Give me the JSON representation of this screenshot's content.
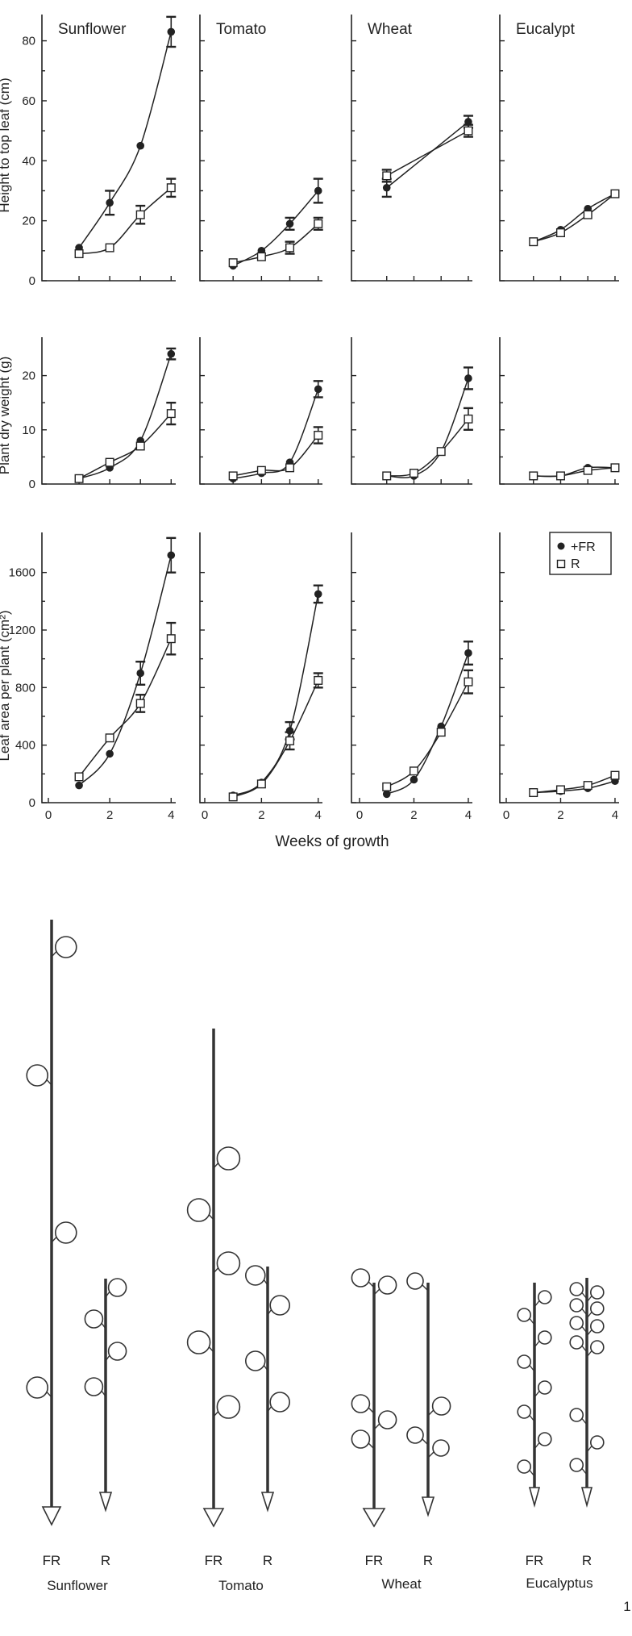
{
  "axes": {
    "y_labels": [
      "Height to top leaf (cm)",
      "Plant dry weight (g)",
      "Leaf area per plant (cm²)"
    ],
    "x_label": "Weeks of growth"
  },
  "legend": {
    "fr": "+FR",
    "r": "R"
  },
  "chart_data": [
    {
      "type": "line",
      "title": "Sunflower",
      "row": "height",
      "x": [
        1,
        2,
        3,
        4
      ],
      "ylim": [
        0,
        85
      ],
      "yticks": [
        0,
        20,
        40,
        60,
        80
      ],
      "xticks": [
        1,
        2,
        3,
        4
      ],
      "series": [
        {
          "name": "+FR",
          "marker": "filled-circle",
          "values": [
            11,
            26,
            45,
            83
          ],
          "errors": [
            0,
            4,
            0,
            5
          ]
        },
        {
          "name": "R",
          "marker": "open-square",
          "values": [
            9,
            11,
            22,
            31
          ],
          "errors": [
            0,
            0,
            3,
            3
          ]
        }
      ]
    },
    {
      "type": "line",
      "title": "Tomato",
      "row": "height",
      "x": [
        1,
        2,
        3,
        4
      ],
      "ylim": [
        0,
        85
      ],
      "yticks": [
        0,
        20,
        40,
        60,
        80
      ],
      "xticks": [
        1,
        2,
        3,
        4
      ],
      "series": [
        {
          "name": "+FR",
          "marker": "filled-circle",
          "values": [
            5,
            10,
            19,
            30
          ],
          "errors": [
            0,
            0,
            2,
            4
          ]
        },
        {
          "name": "R",
          "marker": "open-square",
          "values": [
            6,
            8,
            11,
            19
          ],
          "errors": [
            0,
            0,
            2,
            2
          ]
        }
      ]
    },
    {
      "type": "line",
      "title": "Wheat",
      "row": "height",
      "x": [
        1,
        4
      ],
      "ylim": [
        0,
        85
      ],
      "yticks": [
        0,
        20,
        40,
        60,
        80
      ],
      "xticks": [
        1,
        2,
        3,
        4
      ],
      "series": [
        {
          "name": "+FR",
          "marker": "filled-circle",
          "values": [
            31,
            53
          ],
          "errors": [
            3,
            2
          ]
        },
        {
          "name": "R",
          "marker": "open-square",
          "values": [
            35,
            50
          ],
          "errors": [
            2,
            2
          ]
        }
      ]
    },
    {
      "type": "line",
      "title": "Eucalypt",
      "row": "height",
      "x": [
        1,
        2,
        3,
        4
      ],
      "ylim": [
        0,
        85
      ],
      "yticks": [
        0,
        20,
        40,
        60,
        80
      ],
      "xticks": [
        1,
        2,
        3,
        4
      ],
      "series": [
        {
          "name": "+FR",
          "marker": "filled-circle",
          "values": [
            13,
            17,
            24,
            29
          ],
          "errors": [
            0,
            0,
            0,
            0
          ]
        },
        {
          "name": "R",
          "marker": "open-square",
          "values": [
            13,
            16,
            22,
            29
          ],
          "errors": [
            0,
            0,
            0,
            0
          ]
        }
      ]
    },
    {
      "type": "line",
      "title": "",
      "row": "weight",
      "species": "Sunflower",
      "x": [
        1,
        2,
        3,
        4
      ],
      "ylim": [
        0,
        25
      ],
      "yticks": [
        0,
        10,
        20
      ],
      "xticks": [
        1,
        2,
        3,
        4
      ],
      "series": [
        {
          "name": "+FR",
          "marker": "filled-circle",
          "values": [
            1,
            3,
            8,
            24
          ],
          "errors": [
            0,
            0,
            0,
            1
          ]
        },
        {
          "name": "R",
          "marker": "open-square",
          "values": [
            1,
            4,
            7,
            13
          ],
          "errors": [
            0,
            0,
            0,
            2
          ]
        }
      ]
    },
    {
      "type": "line",
      "title": "",
      "row": "weight",
      "species": "Tomato",
      "x": [
        1,
        2,
        3,
        4
      ],
      "ylim": [
        0,
        25
      ],
      "yticks": [
        0,
        10,
        20
      ],
      "xticks": [
        1,
        2,
        3,
        4
      ],
      "series": [
        {
          "name": "+FR",
          "marker": "filled-circle",
          "values": [
            1,
            2,
            4,
            17.5
          ],
          "errors": [
            0,
            0,
            0,
            1.5
          ]
        },
        {
          "name": "R",
          "marker": "open-square",
          "values": [
            1.5,
            2.5,
            3,
            9
          ],
          "errors": [
            0,
            0,
            0,
            1.5
          ]
        }
      ]
    },
    {
      "type": "line",
      "title": "",
      "row": "weight",
      "species": "Wheat",
      "x": [
        1,
        2,
        3,
        4
      ],
      "ylim": [
        0,
        25
      ],
      "yticks": [
        0,
        10,
        20
      ],
      "xticks": [
        1,
        2,
        3,
        4
      ],
      "series": [
        {
          "name": "+FR",
          "marker": "filled-circle",
          "values": [
            1.5,
            1.5,
            6,
            19.5
          ],
          "errors": [
            0,
            0,
            0,
            2
          ]
        },
        {
          "name": "R",
          "marker": "open-square",
          "values": [
            1.5,
            2,
            6,
            12
          ],
          "errors": [
            0,
            0,
            0,
            2
          ]
        }
      ]
    },
    {
      "type": "line",
      "title": "",
      "row": "weight",
      "species": "Eucalypt",
      "x": [
        1,
        2,
        3,
        4
      ],
      "ylim": [
        0,
        25
      ],
      "yticks": [
        0,
        10,
        20
      ],
      "xticks": [
        1,
        2,
        3,
        4
      ],
      "series": [
        {
          "name": "+FR",
          "marker": "filled-circle",
          "values": [
            1.5,
            1.5,
            3,
            3
          ],
          "errors": [
            0,
            0,
            0,
            0
          ]
        },
        {
          "name": "R",
          "marker": "open-square",
          "values": [
            1.5,
            1.5,
            2.5,
            3
          ],
          "errors": [
            0,
            0,
            0,
            0
          ]
        }
      ]
    },
    {
      "type": "line",
      "title": "",
      "row": "area",
      "species": "Sunflower",
      "x": [
        1,
        2,
        3,
        4
      ],
      "ylim": [
        0,
        1800
      ],
      "yticks": [
        0,
        400,
        800,
        1200,
        1600
      ],
      "xticks": [
        0,
        2,
        4
      ],
      "series": [
        {
          "name": "+FR",
          "marker": "filled-circle",
          "values": [
            120,
            340,
            900,
            1720
          ],
          "errors": [
            0,
            0,
            80,
            120
          ]
        },
        {
          "name": "R",
          "marker": "open-square",
          "values": [
            180,
            450,
            690,
            1140
          ],
          "errors": [
            0,
            0,
            60,
            110
          ]
        }
      ]
    },
    {
      "type": "line",
      "title": "",
      "row": "area",
      "species": "Tomato",
      "x": [
        1,
        2,
        3,
        4
      ],
      "ylim": [
        0,
        1800
      ],
      "yticks": [
        0,
        400,
        800,
        1200,
        1600
      ],
      "xticks": [
        0,
        2,
        4
      ],
      "series": [
        {
          "name": "+FR",
          "marker": "filled-circle",
          "values": [
            50,
            140,
            500,
            1450
          ],
          "errors": [
            0,
            0,
            60,
            60
          ]
        },
        {
          "name": "R",
          "marker": "open-square",
          "values": [
            40,
            130,
            430,
            850
          ],
          "errors": [
            0,
            0,
            60,
            50
          ]
        }
      ]
    },
    {
      "type": "line",
      "title": "",
      "row": "area",
      "species": "Wheat",
      "x": [
        1,
        2,
        3,
        4
      ],
      "ylim": [
        0,
        1800
      ],
      "yticks": [
        0,
        400,
        800,
        1200,
        1600
      ],
      "xticks": [
        0,
        2,
        4
      ],
      "series": [
        {
          "name": "+FR",
          "marker": "filled-circle",
          "values": [
            60,
            160,
            530,
            1040
          ],
          "errors": [
            0,
            0,
            0,
            80
          ]
        },
        {
          "name": "R",
          "marker": "open-square",
          "values": [
            110,
            220,
            490,
            840
          ],
          "errors": [
            0,
            0,
            0,
            80
          ]
        }
      ]
    },
    {
      "type": "line",
      "title": "",
      "row": "area",
      "species": "Eucalypt",
      "x": [
        1,
        2,
        3,
        4
      ],
      "ylim": [
        0,
        1800
      ],
      "yticks": [
        0,
        400,
        800,
        1200,
        1600
      ],
      "xticks": [
        0,
        2,
        4
      ],
      "series": [
        {
          "name": "+FR",
          "marker": "filled-circle",
          "values": [
            70,
            80,
            100,
            150
          ],
          "errors": [
            0,
            0,
            0,
            0
          ]
        },
        {
          "name": "R",
          "marker": "open-square",
          "values": [
            70,
            90,
            120,
            190
          ],
          "errors": [
            0,
            0,
            0,
            0
          ]
        }
      ]
    }
  ],
  "diagram": {
    "groups": [
      {
        "species": "Sunflower",
        "fr": "FR",
        "r": "R"
      },
      {
        "species": "Tomato",
        "fr": "FR",
        "r": "R"
      },
      {
        "species": "Wheat",
        "fr": "FR",
        "r": "R"
      },
      {
        "species": "Eucalyptus",
        "fr": "FR",
        "r": "R"
      }
    ],
    "page_number": "1"
  }
}
